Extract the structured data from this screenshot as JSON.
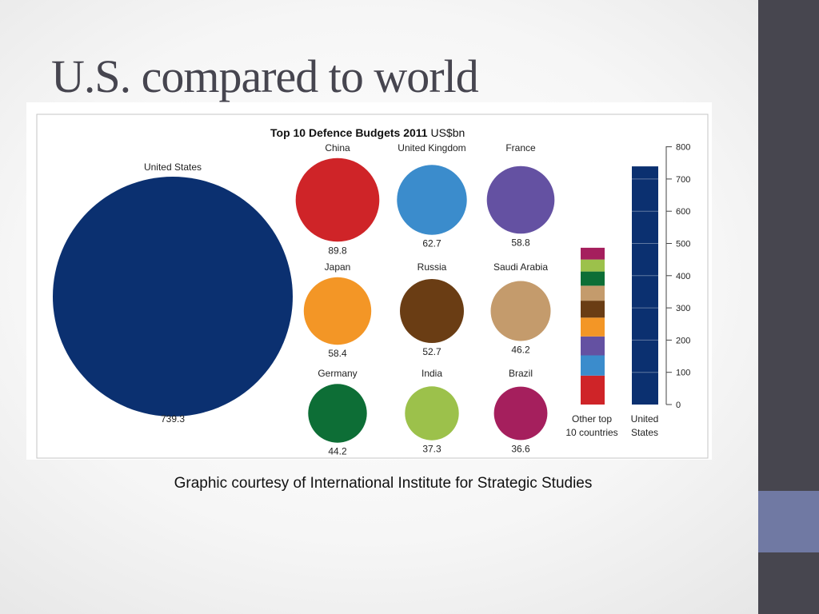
{
  "slide": {
    "title": "U.S. compared to world",
    "caption": "Graphic courtesy of International Institute for Strategic Studies",
    "colors": {
      "band": "#47464f",
      "accent": "#7079a3",
      "title": "#46454f"
    }
  },
  "chart_data": [
    {
      "type": "bubble",
      "title": "Top 10 Defence Budgets 2011",
      "title_unit": "US$bn",
      "items": [
        {
          "name": "United States",
          "value": 739.3,
          "color": "#0b3070"
        },
        {
          "name": "China",
          "value": 89.8,
          "color": "#cf2428"
        },
        {
          "name": "United Kingdom",
          "value": 62.7,
          "color": "#3b8ccc"
        },
        {
          "name": "France",
          "value": 58.8,
          "color": "#6451a2"
        },
        {
          "name": "Japan",
          "value": 58.4,
          "color": "#f39626"
        },
        {
          "name": "Russia",
          "value": 52.7,
          "color": "#6a3d14"
        },
        {
          "name": "Saudi Arabia",
          "value": 46.2,
          "color": "#c49b6c"
        },
        {
          "name": "Germany",
          "value": 44.2,
          "color": "#0d6e36"
        },
        {
          "name": "India",
          "value": 37.3,
          "color": "#9cc14b"
        },
        {
          "name": "Brazil",
          "value": 36.6,
          "color": "#a51f5d"
        }
      ]
    },
    {
      "type": "bar",
      "stacked": true,
      "ylim": [
        0,
        800
      ],
      "ticks": [
        "0",
        "100",
        "200",
        "300",
        "400",
        "500",
        "600",
        "700",
        "800"
      ],
      "categories": [
        "Other top 10 countries",
        "United States"
      ],
      "category_labels": [
        [
          "Other top",
          "10 countries"
        ],
        [
          "United",
          "States"
        ]
      ],
      "segments": [
        {
          "category": "Other top 10 countries",
          "value": 89.8,
          "color": "#cf2428"
        },
        {
          "category": "Other top 10 countries",
          "value": 62.7,
          "color": "#3b8ccc"
        },
        {
          "category": "Other top 10 countries",
          "value": 58.8,
          "color": "#6451a2"
        },
        {
          "category": "Other top 10 countries",
          "value": 58.4,
          "color": "#f39626"
        },
        {
          "category": "Other top 10 countries",
          "value": 52.7,
          "color": "#6a3d14"
        },
        {
          "category": "Other top 10 countries",
          "value": 46.2,
          "color": "#c49b6c"
        },
        {
          "category": "Other top 10 countries",
          "value": 44.2,
          "color": "#0d6e36"
        },
        {
          "category": "Other top 10 countries",
          "value": 37.3,
          "color": "#9cc14b"
        },
        {
          "category": "Other top 10 countries",
          "value": 36.6,
          "color": "#a51f5d"
        },
        {
          "category": "United States",
          "value": 739.3,
          "color": "#0b3070"
        }
      ]
    }
  ]
}
